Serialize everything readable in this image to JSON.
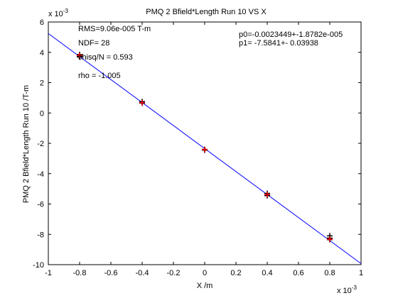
{
  "chart_data": {
    "type": "scatter",
    "title": "PMQ 2 Bfield*Length Run 10 VS X",
    "xlabel": "X /m",
    "ylabel": "PMQ 2 Bfield*Length Run 10 /T-m",
    "x_exponent_label": "x 10",
    "x_exponent": "-3",
    "y_exponent_label": "x 10",
    "y_exponent": "-3",
    "xlim": [
      -1,
      1
    ],
    "ylim": [
      -10,
      6
    ],
    "x_ticks": [
      "-1",
      "-0.8",
      "-0.6",
      "-0.4",
      "-0.2",
      "0",
      "0.2",
      "0.4",
      "0.6",
      "0.8",
      "1"
    ],
    "y_ticks": [
      "-10",
      "-8",
      "-6",
      "-4",
      "-2",
      "0",
      "2",
      "4",
      "6"
    ],
    "grid": false,
    "series": [
      {
        "marker": "plus",
        "color": "#000000",
        "points": [
          [
            -0.8,
            3.85
          ],
          [
            -0.8,
            3.75
          ],
          [
            -0.8,
            3.7
          ],
          [
            -0.4,
            0.75
          ],
          [
            -0.4,
            0.65
          ],
          [
            0.0,
            -2.4
          ],
          [
            0.0,
            -2.45
          ],
          [
            0.4,
            -5.3
          ],
          [
            0.4,
            -5.45
          ],
          [
            0.8,
            -8.1
          ],
          [
            0.8,
            -8.25
          ],
          [
            0.8,
            -8.35
          ]
        ]
      },
      {
        "marker": "plus",
        "color": "#ff0000",
        "points": [
          [
            -0.8,
            3.8
          ],
          [
            -0.4,
            0.68
          ],
          [
            0.0,
            -2.42
          ],
          [
            0.4,
            -5.38
          ],
          [
            0.8,
            -8.32
          ]
        ]
      }
    ],
    "fit_line": {
      "color": "#0000ff",
      "slope": -7.5841,
      "intercept": -2.3449
    },
    "annotations": {
      "rms": "RMS=9.06e-005 T-m",
      "ndf": "NDF=   28",
      "chisq": "chisq/N = 0.593",
      "rho": "rho     = -1.005",
      "p0": "p0=-0.0023449+-1.8782e-005",
      "p1": "p1=  -7.5841+-  0.03938"
    }
  }
}
